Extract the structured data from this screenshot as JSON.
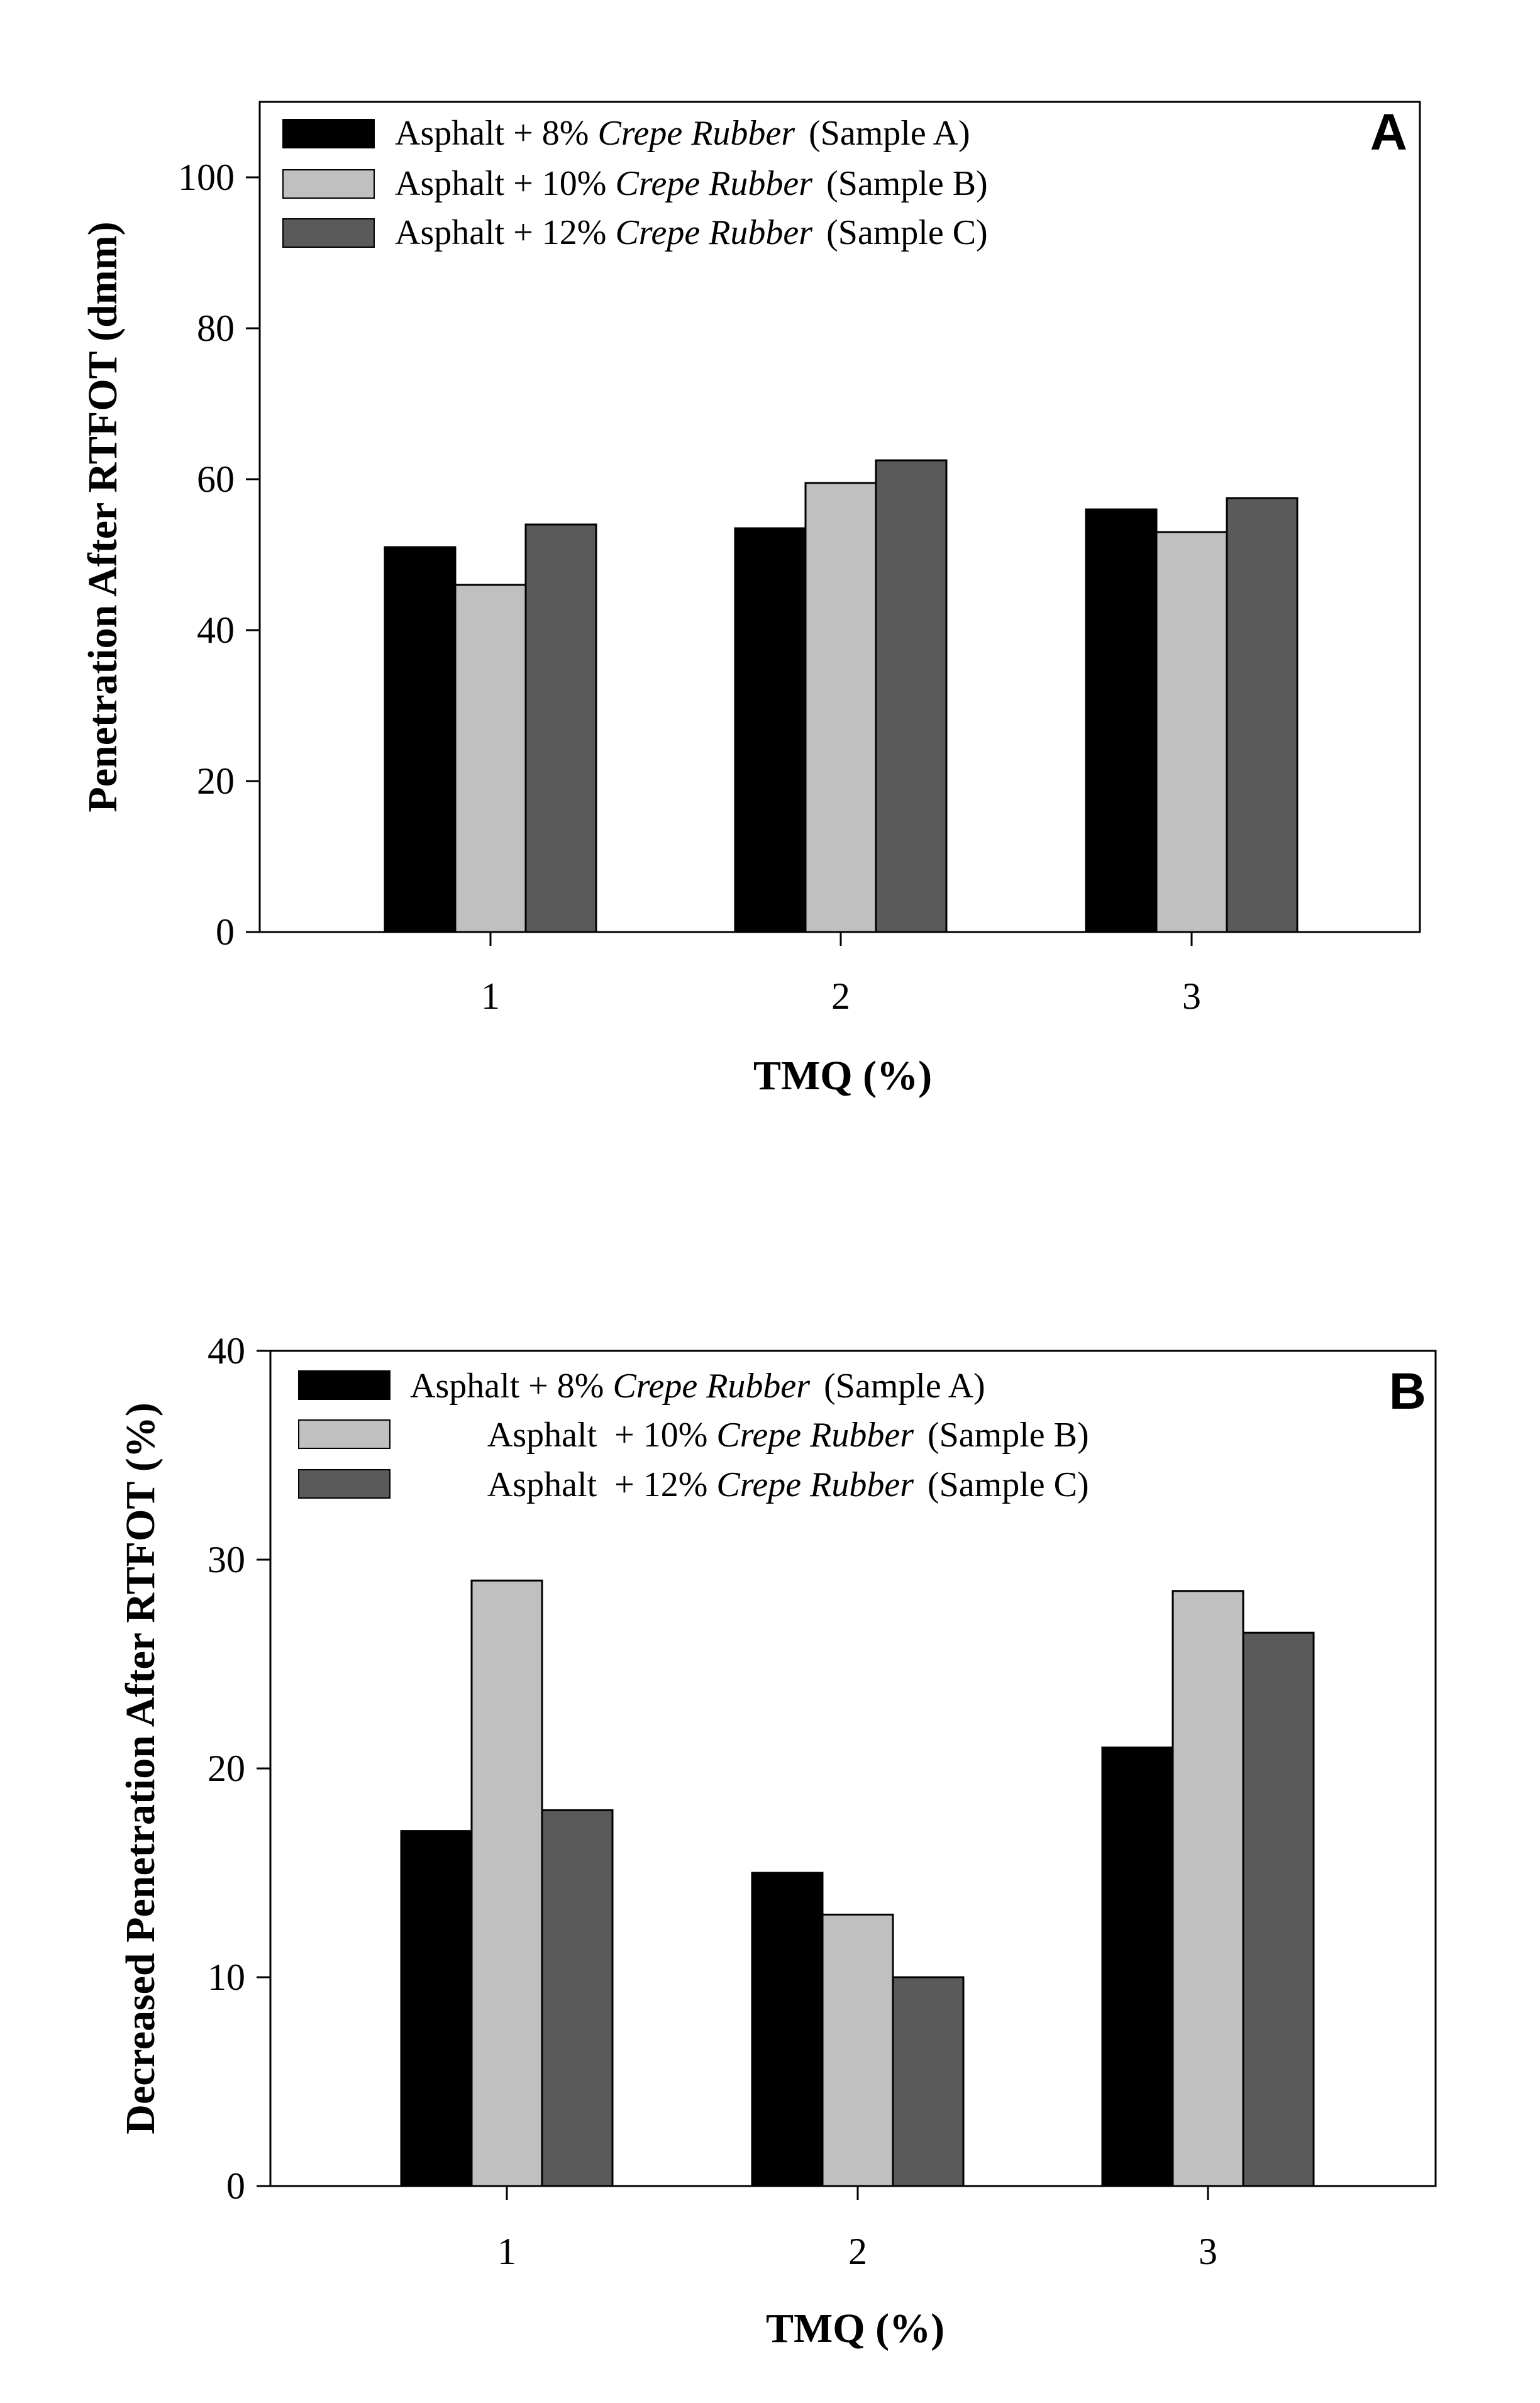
{
  "chart_data": [
    {
      "type": "bar",
      "panel": "A",
      "xlabel": "TMQ (%)",
      "ylabel": "Penetration After RTFOT (dmm)",
      "categories": [
        "1",
        "2",
        "3"
      ],
      "ylim": [
        0,
        110
      ],
      "yticks": [
        0,
        20,
        40,
        60,
        80,
        100
      ],
      "grid": false,
      "legend_position": "top-left",
      "series": [
        {
          "name": "Sample A",
          "legend_prefix": "Asphalt + 8% ",
          "legend_italic": "Crepe Rubber",
          "legend_suffix": "(Sample A)",
          "color": "#000000",
          "values": [
            51,
            53.5,
            56
          ]
        },
        {
          "name": "Sample B",
          "legend_prefix": "Asphalt + 10% ",
          "legend_italic": "Crepe Rubber",
          "legend_suffix": "(Sample B)",
          "color": "#c0c0c0",
          "values": [
            46,
            59.5,
            53
          ]
        },
        {
          "name": "Sample C",
          "legend_prefix": "Asphalt + 12% ",
          "legend_italic": "Crepe Rubber",
          "legend_suffix": "(Sample C)",
          "color": "#5a5a5a",
          "values": [
            54,
            62.5,
            57.5
          ]
        }
      ]
    },
    {
      "type": "bar",
      "panel": "B",
      "xlabel": "TMQ (%)",
      "ylabel": "Decreased Penetration After RTFOT (%)",
      "categories": [
        "1",
        "2",
        "3"
      ],
      "ylim": [
        0,
        40
      ],
      "yticks": [
        0,
        10,
        20,
        30,
        40
      ],
      "grid": false,
      "legend_position": "top-left",
      "series": [
        {
          "name": "Sample A",
          "legend_prefix": "Asphalt + 8% ",
          "legend_italic": "Crepe Rubber",
          "legend_suffix": "(Sample A)",
          "color": "#000000",
          "values": [
            17,
            15,
            21
          ]
        },
        {
          "name": "Sample B",
          "legend_prefix": "Asphalt  + 10% ",
          "legend_italic": "Crepe Rubber",
          "legend_suffix": "(Sample B)",
          "color": "#c0c0c0",
          "values": [
            29,
            13,
            28.5
          ]
        },
        {
          "name": "Sample C",
          "legend_prefix": "Asphalt  + 12% ",
          "legend_italic": "Crepe Rubber",
          "legend_suffix": "(Sample C)",
          "color": "#5a5a5a",
          "values": [
            18,
            10,
            26.5
          ]
        }
      ]
    }
  ]
}
